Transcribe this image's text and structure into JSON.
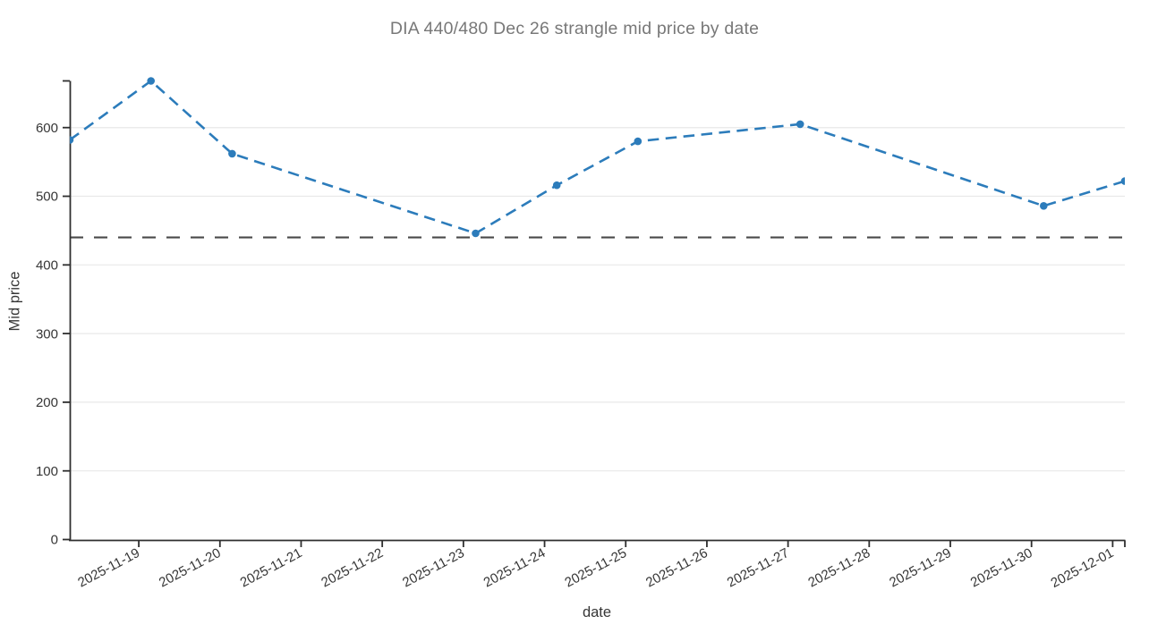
{
  "header": {
    "title": "DIA 440/480 Dec 26 strangle mid price by date"
  },
  "chart_data": {
    "type": "line",
    "title": "DIA 440/480 Dec 26 strangle mid price by date",
    "xlabel": "date",
    "ylabel": "Mid price",
    "x": [
      "2025-11-18",
      "2025-11-19",
      "2025-11-20",
      "2025-11-23",
      "2025-11-24",
      "2025-11-25",
      "2025-11-27",
      "2025-11-30",
      "2025-12-01"
    ],
    "series": [
      {
        "name": "strangle mid price",
        "values": [
          582,
          668,
          562,
          446,
          516,
          580,
          605,
          486,
          522
        ],
        "line_style": "dashed",
        "markers": true
      }
    ],
    "reference_line": {
      "value": 440,
      "line_style": "dashed"
    },
    "x_tick_labels": [
      "2025-11-19",
      "2025-11-20",
      "2025-11-21",
      "2025-11-22",
      "2025-11-23",
      "2025-11-24",
      "2025-11-25",
      "2025-11-26",
      "2025-11-27",
      "2025-11-28",
      "2025-11-29",
      "2025-11-30",
      "2025-12-01"
    ],
    "y_ticks": [
      0,
      100,
      200,
      300,
      400,
      500,
      600
    ],
    "ylim": [
      0,
      668
    ],
    "grid": "horizontal",
    "legend": "none",
    "colors": {
      "line": "#2c7cbb",
      "reference": "#4a4a4a",
      "grid": "#e8e8e8",
      "axis": "#2f2f2f",
      "title_text": "#787878",
      "tick_text": "#363636"
    }
  }
}
